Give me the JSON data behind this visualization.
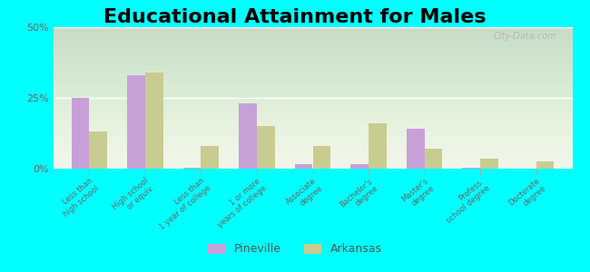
{
  "title": "Educational Attainment for Males",
  "categories": [
    "Less than\nhigh school",
    "High school\nor equiv.",
    "Less than\n1 year of college",
    "1 or more\nyears of college",
    "Associate\ndegree",
    "Bachelor's\ndegree",
    "Master's\ndegree",
    "Profess.\nschool degree",
    "Doctorate\ndegree"
  ],
  "pineville": [
    25.0,
    33.0,
    0.3,
    23.0,
    1.5,
    1.5,
    14.0,
    0.3,
    0.0
  ],
  "arkansas": [
    13.0,
    34.0,
    8.0,
    15.0,
    8.0,
    16.0,
    7.0,
    3.5,
    2.5
  ],
  "pineville_color": "#c8a0d8",
  "arkansas_color": "#c8cc90",
  "background_color": "#00ffff",
  "ylim": [
    0,
    50
  ],
  "yticks": [
    0,
    25,
    50
  ],
  "ytick_labels": [
    "0%",
    "25%",
    "50%"
  ],
  "title_fontsize": 16,
  "legend_labels": [
    "Pineville",
    "Arkansas"
  ],
  "watermark": "City-Data.com"
}
